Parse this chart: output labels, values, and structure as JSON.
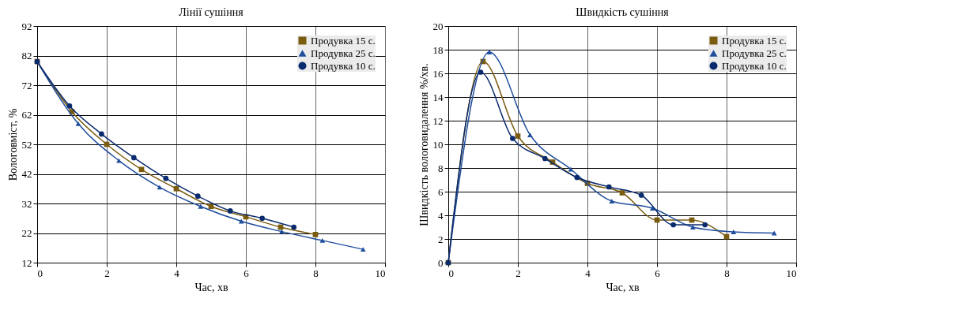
{
  "chart_data": [
    {
      "type": "line",
      "title": "Лінії сушіння",
      "xlabel": "Час, хв",
      "ylabel": "Вологовміст, %",
      "xlim": [
        0,
        10
      ],
      "xticks": [
        0,
        2,
        4,
        6,
        8,
        10
      ],
      "ylim": [
        12,
        92
      ],
      "yticks": [
        12,
        22,
        32,
        42,
        52,
        62,
        72,
        82,
        92
      ],
      "grid": true,
      "legend": "top right",
      "series": [
        {
          "name": "Продувка 15 с.",
          "color": "#7a5c10",
          "marker": "square",
          "x": [
            0,
            1,
            2,
            3,
            4,
            5,
            6,
            7,
            8
          ],
          "values": [
            80,
            63,
            52,
            43.5,
            37,
            31,
            27.5,
            24,
            21.5
          ]
        },
        {
          "name": "Продувка 25 с.",
          "color": "#1f4e9c",
          "marker": "triangle",
          "x": [
            0,
            1.18,
            2.35,
            3.52,
            4.7,
            5.87,
            7.03,
            8.2,
            9.37
          ],
          "values": [
            80,
            59,
            46.5,
            37.5,
            31,
            26,
            22.5,
            19.5,
            16.5
          ]
        },
        {
          "name": "Продувка 10 с.",
          "color": "#0a2a6e",
          "marker": "circle",
          "x": [
            0,
            0.93,
            1.85,
            2.78,
            3.7,
            4.62,
            5.55,
            6.47,
            7.38
          ],
          "values": [
            80,
            65,
            55.5,
            47.5,
            40.5,
            34.5,
            29.5,
            27,
            24
          ]
        }
      ]
    },
    {
      "type": "line",
      "title": "Швидкість сушіння",
      "xlabel": "Час, хв",
      "ylabel": "Швидкість вологовидалення %/хв.",
      "xlim": [
        0,
        10
      ],
      "xticks": [
        0,
        2,
        4,
        6,
        8,
        10
      ],
      "ylim": [
        0,
        20
      ],
      "yticks": [
        0,
        2,
        4,
        6,
        8,
        10,
        12,
        14,
        16,
        18,
        20
      ],
      "grid": true,
      "legend": "top right",
      "series": [
        {
          "name": "Продувка 15 с.",
          "color": "#7a5c10",
          "marker": "square",
          "x": [
            0,
            1,
            2,
            3,
            4,
            5,
            6,
            7,
            8
          ],
          "values": [
            0,
            17,
            10.7,
            8.5,
            6.7,
            5.9,
            3.6,
            3.6,
            2.2
          ]
        },
        {
          "name": "Продувка 25 с.",
          "color": "#1f4e9c",
          "marker": "triangle",
          "x": [
            0,
            1.18,
            2.35,
            3.52,
            4.7,
            5.87,
            7.03,
            8.2,
            9.37
          ],
          "values": [
            0,
            17.8,
            10.8,
            7.9,
            5.2,
            4.6,
            3,
            2.6,
            2.5
          ]
        },
        {
          "name": "Продувка 10 с.",
          "color": "#0a2a6e",
          "marker": "circle",
          "x": [
            0,
            0.93,
            1.85,
            2.78,
            3.7,
            4.62,
            5.55,
            6.47,
            7.38
          ],
          "values": [
            0,
            16.1,
            10.5,
            8.8,
            7.2,
            6.4,
            5.7,
            3.2,
            3.2
          ]
        }
      ]
    }
  ]
}
